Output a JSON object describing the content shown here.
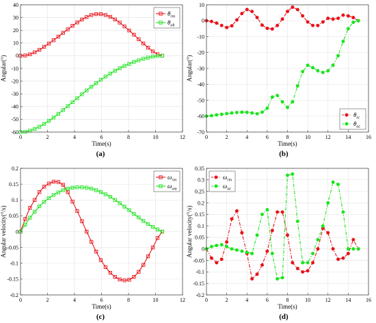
{
  "figure": {
    "panels": [
      {
        "label": "(a)"
      },
      {
        "label": "(b)"
      },
      {
        "label": "(c)"
      },
      {
        "label": "(d)"
      }
    ]
  },
  "chart_data": [
    {
      "type": "line",
      "panel": "(a)",
      "xlabel": "Time(s)",
      "ylabel": "Angular(°)",
      "xlim": [
        0,
        12
      ],
      "ylim": [
        -60,
        40
      ],
      "xticks": [
        0,
        2,
        4,
        6,
        8,
        10,
        12
      ],
      "yticks": [
        -60,
        -50,
        -40,
        -30,
        -20,
        -10,
        0,
        10,
        20,
        30,
        40
      ],
      "grid": true,
      "legend_position": "top-right",
      "series": [
        {
          "name": "θ_rm",
          "color": "#e8131a",
          "marker": "square",
          "line": "solid",
          "x": [
            0,
            0.35,
            0.7,
            1.05,
            1.4,
            1.75,
            2.1,
            2.45,
            2.8,
            3.15,
            3.5,
            3.85,
            4.2,
            4.55,
            4.9,
            5.25,
            5.6,
            5.95,
            6.3,
            6.65,
            7.0,
            7.35,
            7.7,
            8.05,
            8.4,
            8.75,
            9.1,
            9.45,
            9.8,
            10.15,
            10.5
          ],
          "y": [
            0,
            0.2,
            1.1,
            2.7,
            4.6,
            7.0,
            9.5,
            12.2,
            15.0,
            17.9,
            20.7,
            23.5,
            26.1,
            28.4,
            30.4,
            32.0,
            32.7,
            32.7,
            32.0,
            30.6,
            28.5,
            26.0,
            23.0,
            19.8,
            16.5,
            13.0,
            9.6,
            6.3,
            3.4,
            1.2,
            0
          ]
        },
        {
          "name": "θ_ob",
          "color": "#1de41f",
          "marker": "square",
          "line": "solid",
          "x": [
            0,
            0.35,
            0.7,
            1.05,
            1.4,
            1.75,
            2.1,
            2.45,
            2.8,
            3.15,
            3.5,
            3.85,
            4.2,
            4.55,
            4.9,
            5.25,
            5.6,
            5.95,
            6.3,
            6.65,
            7.0,
            7.35,
            7.7,
            8.05,
            8.4,
            8.75,
            9.1,
            9.45,
            9.8,
            10.15,
            10.5
          ],
          "y": [
            -60,
            -59.8,
            -58.9,
            -57.5,
            -55.8,
            -53.6,
            -51.2,
            -48.6,
            -45.7,
            -42.7,
            -39.6,
            -36.5,
            -33.4,
            -30.3,
            -27.3,
            -24.4,
            -21.6,
            -18.9,
            -16.4,
            -14.0,
            -11.8,
            -9.8,
            -8.0,
            -6.4,
            -4.9,
            -3.6,
            -2.4,
            -1.5,
            -0.7,
            -0.2,
            0
          ]
        }
      ]
    },
    {
      "type": "line",
      "panel": "(b)",
      "xlabel": "Time(s)",
      "ylabel": "Angular(°)",
      "xlim": [
        0,
        16
      ],
      "ylim": [
        -70,
        10
      ],
      "xticks": [
        0,
        2,
        4,
        6,
        8,
        10,
        12,
        14,
        16
      ],
      "yticks": [
        -70,
        -60,
        -50,
        -40,
        -30,
        -20,
        -10,
        0,
        10
      ],
      "grid": true,
      "legend_position": "bottom-right",
      "series": [
        {
          "name": "θ_rc",
          "color": "#e8131a",
          "marker": "circle",
          "line": "dash-dot",
          "x": [
            0,
            0.5,
            1.0,
            1.5,
            2.0,
            2.5,
            3.0,
            3.5,
            4.0,
            4.5,
            5.0,
            5.5,
            6.0,
            6.5,
            7.0,
            7.5,
            8.0,
            8.5,
            9.0,
            9.5,
            10.0,
            10.5,
            11.0,
            11.5,
            12.0,
            12.5,
            13.0,
            13.5,
            14.0,
            14.5,
            15.0
          ],
          "y": [
            0,
            -0.5,
            -1.5,
            -3.0,
            -4.3,
            -3.2,
            0.5,
            4.5,
            7.0,
            5.8,
            2.0,
            -2.8,
            -4.8,
            -5.2,
            -3.0,
            1.0,
            5.8,
            8.5,
            7.0,
            3.0,
            -0.8,
            -3.0,
            -3.0,
            -0.8,
            1.5,
            1.0,
            1.5,
            3.5,
            3.0,
            2.0,
            0
          ]
        },
        {
          "name": "θ_oc",
          "color": "#1de41f",
          "marker": "circle",
          "line": "dash-dot",
          "x": [
            0,
            0.5,
            1.0,
            1.5,
            2.0,
            2.5,
            3.0,
            3.5,
            4.0,
            4.5,
            5.0,
            5.5,
            6.0,
            6.5,
            7.0,
            7.5,
            8.0,
            8.5,
            9.0,
            9.5,
            10.0,
            10.5,
            11.0,
            11.5,
            12.0,
            12.5,
            13.0,
            13.5,
            14.0,
            14.5,
            15.0
          ],
          "y": [
            -60,
            -59.7,
            -59.2,
            -58.8,
            -58.4,
            -58,
            -57.7,
            -57.5,
            -57.6,
            -58,
            -58.5,
            -57.5,
            -55,
            -48,
            -47,
            -51,
            -54.5,
            -51,
            -41,
            -32,
            -28,
            -29.5,
            -31.5,
            -32.5,
            -31.5,
            -28,
            -22,
            -13,
            -5,
            -1,
            0
          ]
        }
      ]
    },
    {
      "type": "line",
      "panel": "(c)",
      "xlabel": "Time(s)",
      "ylabel": "Angular velocity(°/s)",
      "xlim": [
        0,
        12
      ],
      "ylim": [
        -0.2,
        0.2
      ],
      "xticks": [
        0,
        2,
        4,
        6,
        8,
        10,
        12
      ],
      "yticks": [
        -0.2,
        -0.15,
        -0.1,
        -0.05,
        0,
        0.05,
        0.1,
        0.15,
        0.2
      ],
      "grid": true,
      "legend_position": "top-right",
      "series": [
        {
          "name": "ω_rm",
          "color": "#e8131a",
          "marker": "square",
          "line": "solid",
          "x": [
            0,
            0.35,
            0.7,
            1.05,
            1.4,
            1.75,
            2.1,
            2.45,
            2.8,
            3.15,
            3.5,
            3.85,
            4.2,
            4.55,
            4.9,
            5.25,
            5.6,
            5.95,
            6.3,
            6.65,
            7.0,
            7.35,
            7.7,
            8.05,
            8.4,
            8.75,
            9.1,
            9.45,
            9.8,
            10.15,
            10.5
          ],
          "y": [
            0,
            0.04,
            0.075,
            0.1,
            0.125,
            0.142,
            0.152,
            0.158,
            0.157,
            0.148,
            0.125,
            0.095,
            0.065,
            0.033,
            0.0,
            -0.032,
            -0.063,
            -0.09,
            -0.112,
            -0.13,
            -0.143,
            -0.151,
            -0.154,
            -0.152,
            -0.143,
            -0.127,
            -0.105,
            -0.078,
            -0.05,
            -0.02,
            0
          ]
        },
        {
          "name": "ω_om",
          "color": "#1de41f",
          "marker": "square",
          "line": "solid",
          "x": [
            0,
            0.35,
            0.7,
            1.05,
            1.4,
            1.75,
            2.1,
            2.45,
            2.8,
            3.15,
            3.5,
            3.85,
            4.2,
            4.55,
            4.9,
            5.25,
            5.6,
            5.95,
            6.3,
            6.65,
            7.0,
            7.35,
            7.7,
            8.05,
            8.4,
            8.75,
            9.1,
            9.45,
            9.8,
            10.15,
            10.5
          ],
          "y": [
            0,
            0.022,
            0.044,
            0.063,
            0.08,
            0.094,
            0.106,
            0.116,
            0.124,
            0.131,
            0.136,
            0.139,
            0.14,
            0.14,
            0.139,
            0.136,
            0.131,
            0.125,
            0.118,
            0.11,
            0.1,
            0.09,
            0.079,
            0.068,
            0.056,
            0.045,
            0.034,
            0.024,
            0.015,
            0.007,
            0
          ]
        }
      ]
    },
    {
      "type": "line",
      "panel": "(d)",
      "xlabel": "Time(s)",
      "ylabel": "Angular velocity(°/s)",
      "xlim": [
        0,
        16
      ],
      "ylim": [
        -0.2,
        0.35
      ],
      "xticks": [
        0,
        2,
        4,
        6,
        8,
        10,
        12,
        14,
        16
      ],
      "yticks": [
        -0.2,
        -0.15,
        -0.1,
        -0.05,
        0,
        0.05,
        0.1,
        0.15,
        0.2,
        0.25,
        0.3,
        0.35
      ],
      "grid": true,
      "legend_position": "top-left",
      "series": [
        {
          "name": "ω_rm",
          "color": "#e8131a",
          "marker": "circle",
          "line": "dash-dot",
          "x": [
            0,
            0.5,
            1.0,
            1.5,
            2.0,
            2.5,
            3.0,
            3.5,
            4.0,
            4.5,
            5.0,
            5.5,
            6.0,
            6.5,
            7.0,
            7.5,
            8.0,
            8.5,
            9.0,
            9.5,
            10.0,
            10.5,
            11.0,
            11.5,
            12.0,
            12.5,
            13.0,
            13.5,
            14.0,
            14.5,
            15.0
          ],
          "y": [
            0,
            -0.04,
            -0.06,
            -0.045,
            0.03,
            0.13,
            0.165,
            0.07,
            -0.02,
            -0.13,
            -0.11,
            -0.07,
            -0.01,
            0.08,
            0.16,
            0.16,
            0.06,
            -0.06,
            -0.085,
            -0.1,
            -0.095,
            -0.06,
            0.0,
            0.09,
            0.07,
            0.0,
            -0.045,
            -0.04,
            -0.02,
            0.04,
            0
          ]
        },
        {
          "name": "ω_oc",
          "color": "#1de41f",
          "marker": "circle",
          "line": "dash-dot",
          "x": [
            0,
            0.5,
            1.0,
            1.5,
            2.0,
            2.5,
            3.0,
            3.5,
            4.0,
            4.5,
            5.0,
            5.5,
            6.0,
            6.5,
            7.0,
            7.5,
            8.0,
            8.5,
            9.0,
            9.5,
            10.0,
            10.5,
            11.0,
            11.5,
            12.0,
            12.5,
            13.0,
            13.5,
            14.0,
            14.5,
            15.0
          ],
          "y": [
            0,
            0.01,
            0.015,
            0.018,
            0.01,
            0.0,
            -0.005,
            -0.01,
            -0.015,
            -0.02,
            0.06,
            0.15,
            0.17,
            -0.02,
            -0.13,
            -0.125,
            0.32,
            0.325,
            0.12,
            -0.06,
            -0.06,
            -0.02,
            0.04,
            0.1,
            0.2,
            0.29,
            0.28,
            0.16,
            0.0,
            0,
            0
          ]
        }
      ]
    }
  ]
}
